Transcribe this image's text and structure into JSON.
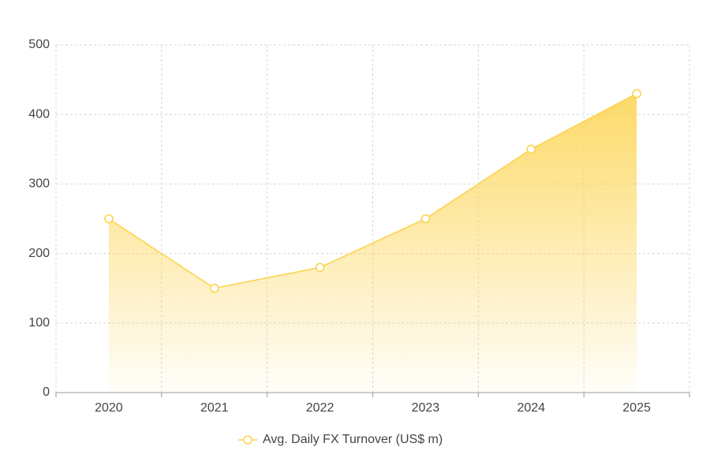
{
  "chart_data": {
    "type": "area",
    "categories": [
      "2020",
      "2021",
      "2022",
      "2023",
      "2024",
      "2025"
    ],
    "series": [
      {
        "name": "Avg. Daily FX Turnover (US$ m)",
        "color": "#fcd34d",
        "values": [
          250,
          150,
          180,
          250,
          350,
          430
        ]
      }
    ],
    "ylim": [
      0,
      500
    ],
    "yticks": [
      0,
      100,
      200,
      300,
      400,
      500
    ],
    "grid": true,
    "legend": "bottom"
  }
}
